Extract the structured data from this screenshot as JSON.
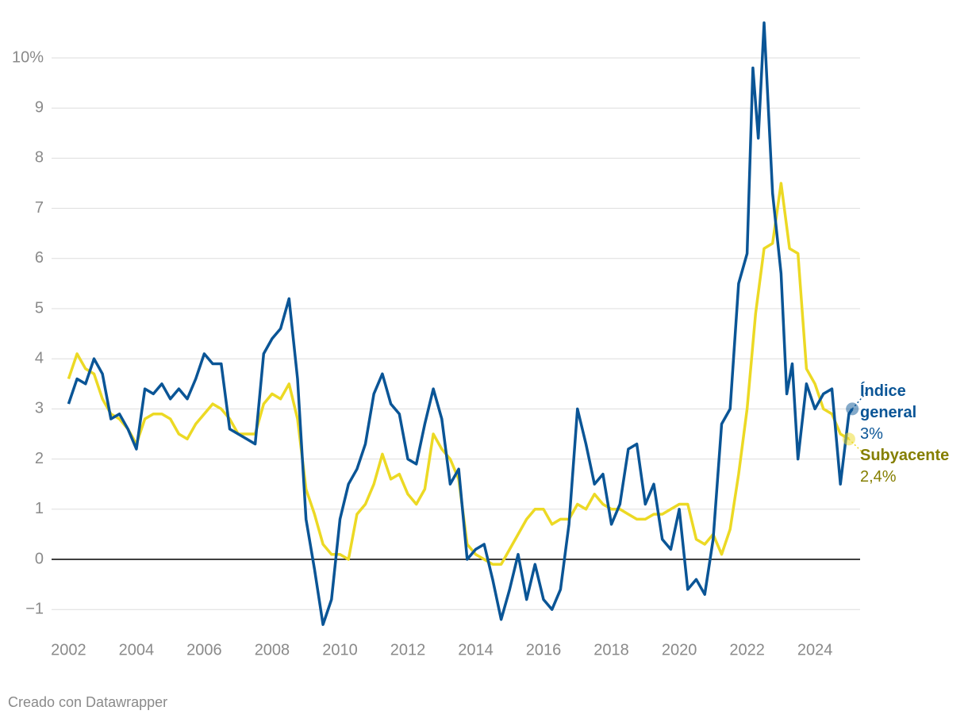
{
  "chart_data": {
    "type": "line",
    "xlim": [
      2001.5,
      2025.33
    ],
    "xticks": [
      2002,
      2004,
      2006,
      2008,
      2010,
      2012,
      2014,
      2016,
      2018,
      2020,
      2022,
      2024
    ],
    "ylim": [
      -1.5,
      10.8
    ],
    "yticks": [
      {
        "value": -1,
        "label": "−1"
      },
      0,
      1,
      2,
      3,
      4,
      5,
      6,
      7,
      8,
      9,
      {
        "value": 10,
        "label": "10%"
      }
    ],
    "grid": true,
    "series": [
      {
        "name": "Subyacente",
        "color": "#ecd924",
        "label_color": "#857f00",
        "end_label": "2,4%",
        "x": [
          2002.0,
          2002.25,
          2002.5,
          2002.75,
          2003.0,
          2003.25,
          2003.5,
          2003.75,
          2004.0,
          2004.25,
          2004.5,
          2004.75,
          2005.0,
          2005.25,
          2005.5,
          2005.75,
          2006.0,
          2006.25,
          2006.5,
          2006.75,
          2007.0,
          2007.25,
          2007.5,
          2007.75,
          2008.0,
          2008.25,
          2008.5,
          2008.75,
          2009.0,
          2009.25,
          2009.5,
          2009.75,
          2010.0,
          2010.25,
          2010.5,
          2010.75,
          2011.0,
          2011.25,
          2011.5,
          2011.75,
          2012.0,
          2012.25,
          2012.5,
          2012.75,
          2013.0,
          2013.25,
          2013.5,
          2013.75,
          2014.0,
          2014.25,
          2014.5,
          2014.75,
          2015.0,
          2015.25,
          2015.5,
          2015.75,
          2016.0,
          2016.25,
          2016.5,
          2016.75,
          2017.0,
          2017.25,
          2017.5,
          2017.75,
          2018.0,
          2018.25,
          2018.5,
          2018.75,
          2019.0,
          2019.25,
          2019.5,
          2019.75,
          2020.0,
          2020.25,
          2020.5,
          2020.75,
          2021.0,
          2021.25,
          2021.5,
          2021.75,
          2022.0,
          2022.25,
          2022.5,
          2022.75,
          2023.0,
          2023.25,
          2023.5,
          2023.75,
          2024.0,
          2024.25,
          2024.5,
          2024.75,
          2025.0
        ],
        "values": [
          3.6,
          4.1,
          3.8,
          3.7,
          3.2,
          2.9,
          2.8,
          2.6,
          2.3,
          2.8,
          2.9,
          2.9,
          2.8,
          2.5,
          2.4,
          2.7,
          2.9,
          3.1,
          3.0,
          2.8,
          2.5,
          2.5,
          2.5,
          3.1,
          3.3,
          3.2,
          3.5,
          2.8,
          1.4,
          0.9,
          0.3,
          0.1,
          0.1,
          0.0,
          0.9,
          1.1,
          1.5,
          2.1,
          1.6,
          1.7,
          1.3,
          1.1,
          1.4,
          2.5,
          2.2,
          2.0,
          1.6,
          0.3,
          0.1,
          0.0,
          -0.1,
          -0.1,
          0.2,
          0.5,
          0.8,
          1.0,
          1.0,
          0.7,
          0.8,
          0.8,
          1.1,
          1.0,
          1.3,
          1.1,
          1.0,
          1.0,
          0.9,
          0.8,
          0.8,
          0.9,
          0.9,
          1.0,
          1.1,
          1.1,
          0.4,
          0.3,
          0.5,
          0.1,
          0.6,
          1.7,
          3.0,
          4.9,
          6.2,
          6.3,
          7.5,
          6.2,
          6.1,
          3.8,
          3.5,
          3.0,
          2.9,
          2.5,
          2.4
        ]
      },
      {
        "name": "Índice general",
        "color": "#0a5596",
        "label_color": "#0a5596",
        "end_label": "3%",
        "x": [
          2002.0,
          2002.25,
          2002.5,
          2002.75,
          2003.0,
          2003.25,
          2003.5,
          2003.75,
          2004.0,
          2004.25,
          2004.5,
          2004.75,
          2005.0,
          2005.25,
          2005.5,
          2005.75,
          2006.0,
          2006.25,
          2006.5,
          2006.75,
          2007.0,
          2007.25,
          2007.5,
          2007.75,
          2008.0,
          2008.25,
          2008.5,
          2008.75,
          2009.0,
          2009.25,
          2009.5,
          2009.75,
          2010.0,
          2010.25,
          2010.5,
          2010.75,
          2011.0,
          2011.25,
          2011.5,
          2011.75,
          2012.0,
          2012.25,
          2012.5,
          2012.75,
          2013.0,
          2013.25,
          2013.5,
          2013.75,
          2014.0,
          2014.25,
          2014.5,
          2014.75,
          2015.0,
          2015.25,
          2015.5,
          2015.75,
          2016.0,
          2016.25,
          2016.5,
          2016.75,
          2017.0,
          2017.25,
          2017.5,
          2017.75,
          2018.0,
          2018.25,
          2018.5,
          2018.75,
          2019.0,
          2019.25,
          2019.5,
          2019.75,
          2020.0,
          2020.25,
          2020.5,
          2020.75,
          2021.0,
          2021.25,
          2021.5,
          2021.75,
          2022.0,
          2022.17,
          2022.33,
          2022.5,
          2022.75,
          2023.0,
          2023.17,
          2023.33,
          2023.5,
          2023.75,
          2024.0,
          2024.25,
          2024.5,
          2024.75,
          2025.0,
          2025.1
        ],
        "values": [
          3.1,
          3.6,
          3.5,
          4.0,
          3.7,
          2.8,
          2.9,
          2.6,
          2.2,
          3.4,
          3.3,
          3.5,
          3.2,
          3.4,
          3.2,
          3.6,
          4.1,
          3.9,
          3.9,
          2.6,
          2.5,
          2.4,
          2.3,
          4.1,
          4.4,
          4.6,
          5.2,
          3.6,
          0.8,
          -0.2,
          -1.3,
          -0.8,
          0.8,
          1.5,
          1.8,
          2.3,
          3.3,
          3.7,
          3.1,
          2.9,
          2.0,
          1.9,
          2.7,
          3.4,
          2.8,
          1.5,
          1.8,
          0.0,
          0.2,
          0.3,
          -0.4,
          -1.2,
          -0.6,
          0.1,
          -0.8,
          -0.1,
          -0.8,
          -1.0,
          -0.6,
          0.7,
          3.0,
          2.3,
          1.5,
          1.7,
          0.7,
          1.1,
          2.2,
          2.3,
          1.1,
          1.5,
          0.4,
          0.2,
          1.0,
          -0.6,
          -0.4,
          -0.7,
          0.4,
          2.7,
          3.0,
          5.5,
          6.1,
          9.8,
          8.4,
          10.7,
          7.3,
          5.7,
          3.3,
          3.9,
          2.0,
          3.5,
          3.0,
          3.3,
          3.4,
          1.5,
          2.9,
          3.0
        ]
      }
    ]
  },
  "footer": "Creado con Datawrapper"
}
